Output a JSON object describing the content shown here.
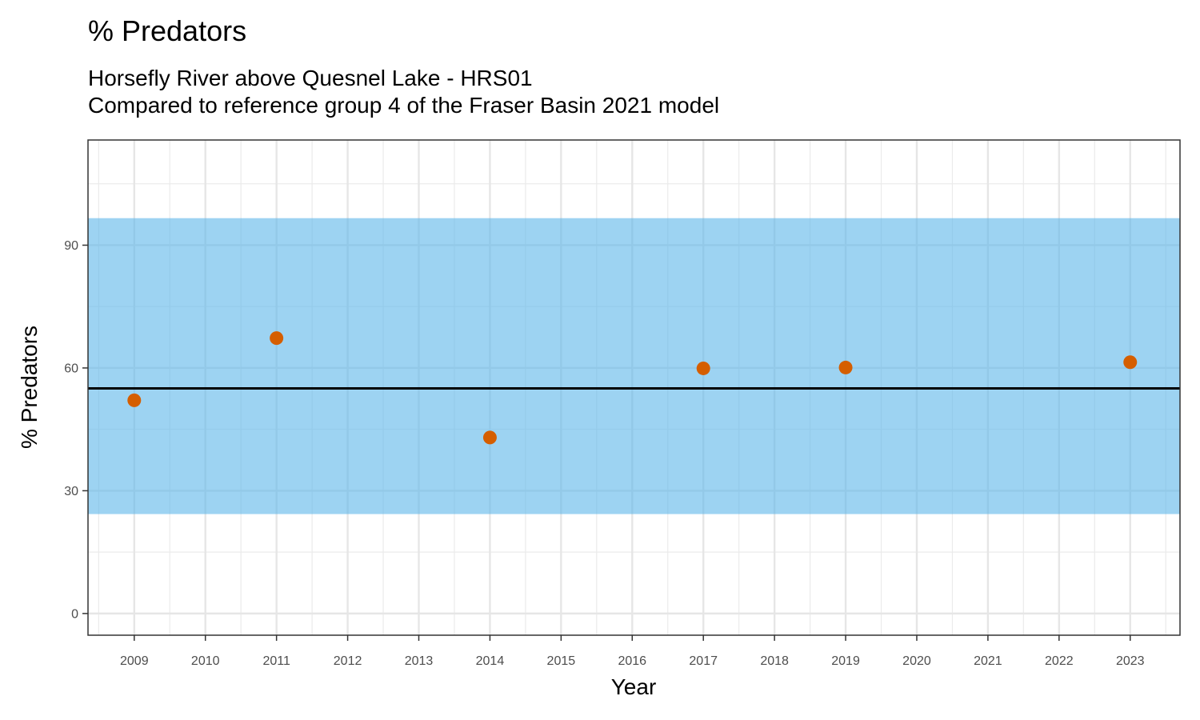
{
  "chart_data": {
    "type": "scatter",
    "title": "% Predators",
    "subtitle": [
      "Horsefly River above Quesnel Lake - HRS01",
      "Compared to reference group 4 of the Fraser Basin 2021 model"
    ],
    "xlabel": "Year",
    "ylabel": "% Predators",
    "x_ticks": [
      2009,
      2010,
      2011,
      2012,
      2013,
      2014,
      2015,
      2016,
      2017,
      2018,
      2019,
      2020,
      2021,
      2022,
      2023
    ],
    "y_ticks": [
      0,
      30,
      60,
      90
    ],
    "xlim": [
      2008.35,
      2023.7
    ],
    "ylim": [
      -5.3,
      115.7
    ],
    "grid": true,
    "reference_band": {
      "lower": 24.3,
      "upper": 96.6,
      "color": "#56B4E9"
    },
    "reference_line": {
      "value": 55,
      "color": "#000000"
    },
    "series": [
      {
        "color": "#D55E00",
        "points": [
          {
            "x": 2009,
            "y": 52.1
          },
          {
            "x": 2011,
            "y": 67.3
          },
          {
            "x": 2014,
            "y": 43.0
          },
          {
            "x": 2017,
            "y": 59.9
          },
          {
            "x": 2019,
            "y": 60.1
          },
          {
            "x": 2023,
            "y": 61.4
          }
        ]
      }
    ]
  }
}
